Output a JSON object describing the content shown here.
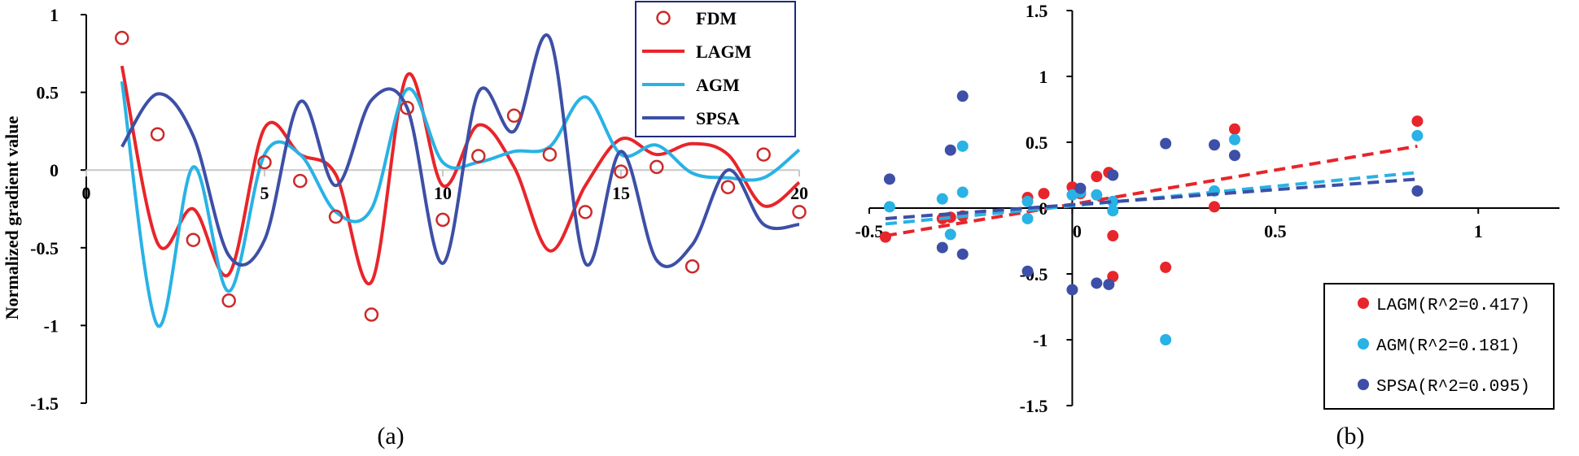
{
  "chart_data": [
    {
      "type": "line",
      "panel_label": "(a)",
      "ylabel": "Normalized gradient value",
      "xlim": [
        0,
        20
      ],
      "ylim": [
        -1.5,
        1
      ],
      "x_ticks": [
        "0",
        "5",
        "10",
        "15",
        "20"
      ],
      "y_ticks": [
        "1",
        "0.5",
        "0",
        "-0.5",
        "-1",
        "-1.5"
      ],
      "legend_position": "top-right",
      "series": [
        {
          "name": "FDM",
          "style": "hollow-circle",
          "color": "#cc2a2a",
          "x": [
            1,
            2,
            3,
            4,
            5,
            6,
            7,
            8,
            9,
            10,
            11,
            12,
            13,
            14,
            15,
            16,
            17,
            18,
            19,
            20
          ],
          "values": [
            0.85,
            0.23,
            -0.45,
            -0.84,
            0.05,
            -0.07,
            -0.3,
            -0.93,
            0.4,
            -0.32,
            0.09,
            0.35,
            0.1,
            -0.27,
            -0.01,
            0.02,
            -0.62,
            -0.11,
            0.1,
            -0.27
          ]
        },
        {
          "name": "LAGM",
          "style": "smooth-line",
          "color": "#e8252a",
          "x": [
            1,
            2,
            3,
            4,
            5,
            6,
            7,
            8,
            9,
            10,
            11,
            12,
            13,
            14,
            15,
            16,
            17,
            18,
            19,
            20
          ],
          "values": [
            0.67,
            -0.47,
            -0.25,
            -0.67,
            0.27,
            0.1,
            -0.03,
            -0.72,
            0.61,
            -0.1,
            0.29,
            0.02,
            -0.52,
            -0.1,
            0.2,
            0.1,
            0.17,
            0.1,
            -0.23,
            -0.08
          ]
        },
        {
          "name": "AGM",
          "style": "smooth-line",
          "color": "#29b2e5",
          "x": [
            1,
            2,
            3,
            4,
            5,
            6,
            7,
            8,
            9,
            10,
            11,
            12,
            13,
            14,
            15,
            16,
            17,
            18,
            19,
            20
          ],
          "values": [
            0.57,
            -1.0,
            0.02,
            -0.78,
            0.1,
            0.1,
            -0.27,
            -0.25,
            0.52,
            0.05,
            0.05,
            0.12,
            0.15,
            0.47,
            0.1,
            0.16,
            -0.02,
            -0.05,
            -0.05,
            0.13
          ]
        },
        {
          "name": "SPSA",
          "style": "smooth-line",
          "color": "#3d4fa6",
          "x": [
            1,
            2,
            3,
            4,
            5,
            6,
            7,
            8,
            9,
            10,
            11,
            12,
            13,
            14,
            15,
            16,
            17,
            18,
            19,
            20
          ],
          "values": [
            0.15,
            0.49,
            0.22,
            -0.55,
            -0.45,
            0.44,
            -0.1,
            0.45,
            0.4,
            -0.6,
            0.5,
            0.25,
            0.85,
            -0.6,
            0.12,
            -0.58,
            -0.48,
            0.0,
            -0.35,
            -0.35
          ]
        }
      ]
    },
    {
      "type": "scatter",
      "panel_label": "(b)",
      "xlim": [
        -0.5,
        1.2
      ],
      "ylim": [
        -1.5,
        1.5
      ],
      "x_ticks": [
        "-0.5",
        "0",
        "0.5",
        "1"
      ],
      "y_ticks": [
        "1.5",
        "1",
        "0.5",
        "0",
        "-0.5",
        "-1",
        "-1.5"
      ],
      "legend_position": "bottom-right",
      "series": [
        {
          "name": "LAGM(R^2=0.417)",
          "color": "#e8252a",
          "points": [
            [
              -0.46,
              -0.22
            ],
            [
              -0.32,
              -0.08
            ],
            [
              -0.3,
              -0.07
            ],
            [
              -0.27,
              -0.06
            ],
            [
              -0.11,
              0.08
            ],
            [
              -0.07,
              0.11
            ],
            [
              0.0,
              0.16
            ],
            [
              0.02,
              0.11
            ],
            [
              0.06,
              0.24
            ],
            [
              0.09,
              0.27
            ],
            [
              0.1,
              -0.52
            ],
            [
              0.1,
              -0.21
            ],
            [
              0.23,
              -0.45
            ],
            [
              0.35,
              0.01
            ],
            [
              0.4,
              0.6
            ],
            [
              0.85,
              0.66
            ]
          ],
          "trend": {
            "x": [
              -0.46,
              0.85
            ],
            "y": [
              -0.21,
              0.47
            ]
          }
        },
        {
          "name": "AGM(R^2=0.181)",
          "color": "#29b2e5",
          "points": [
            [
              -0.45,
              0.01
            ],
            [
              -0.32,
              0.07
            ],
            [
              -0.3,
              -0.2
            ],
            [
              -0.27,
              0.12
            ],
            [
              -0.27,
              0.47
            ],
            [
              -0.11,
              0.05
            ],
            [
              -0.11,
              -0.08
            ],
            [
              0.0,
              0.1
            ],
            [
              0.02,
              0.12
            ],
            [
              0.06,
              0.1
            ],
            [
              0.1,
              0.05
            ],
            [
              0.1,
              -0.02
            ],
            [
              0.23,
              -1.0
            ],
            [
              0.35,
              0.13
            ],
            [
              0.4,
              0.52
            ],
            [
              0.85,
              0.55
            ]
          ],
          "trend": {
            "x": [
              -0.46,
              0.85
            ],
            "y": [
              -0.12,
              0.27
            ]
          }
        },
        {
          "name": "SPSA(R^2=0.095)",
          "color": "#3d4fa6",
          "points": [
            [
              -0.45,
              0.22
            ],
            [
              -0.32,
              -0.3
            ],
            [
              -0.3,
              0.44
            ],
            [
              -0.27,
              0.85
            ],
            [
              -0.27,
              -0.35
            ],
            [
              -0.11,
              -0.48
            ],
            [
              0.0,
              -0.62
            ],
            [
              0.02,
              0.15
            ],
            [
              0.06,
              -0.57
            ],
            [
              0.09,
              -0.58
            ],
            [
              0.1,
              0.25
            ],
            [
              0.23,
              0.49
            ],
            [
              0.35,
              0.48
            ],
            [
              0.4,
              0.4
            ],
            [
              0.85,
              0.13
            ]
          ],
          "trend": {
            "x": [
              -0.46,
              0.85
            ],
            "y": [
              -0.08,
              0.22
            ]
          }
        }
      ]
    }
  ]
}
